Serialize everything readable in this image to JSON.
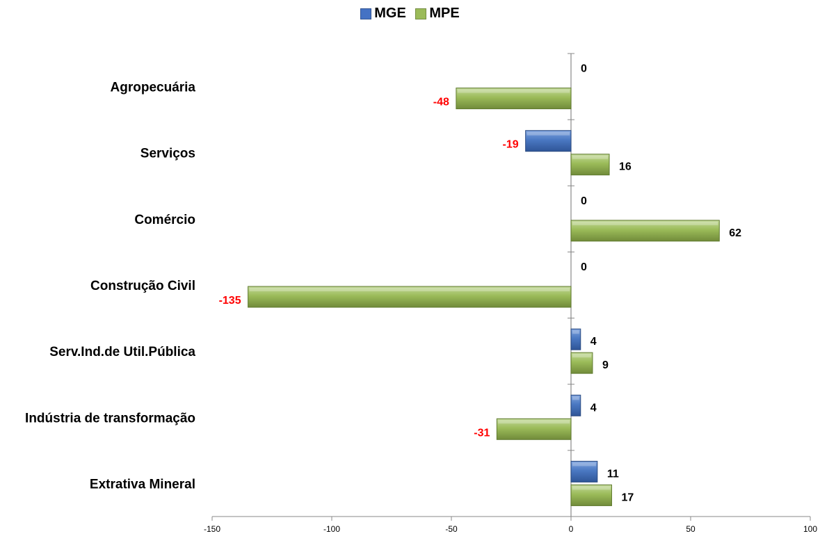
{
  "chart_data": {
    "type": "bar",
    "orientation": "horizontal",
    "categories": [
      "Agropecuária",
      "Serviços",
      "Comércio",
      "Construção Civil",
      "Serv.Ind.de Util.Pública",
      "Indústria de transformação",
      "Extrativa Mineral"
    ],
    "series": [
      {
        "name": "MGE",
        "color": "#4472c4",
        "values": [
          0,
          -19,
          0,
          0,
          4,
          4,
          11
        ]
      },
      {
        "name": "MPE",
        "color": "#9bbb59",
        "values": [
          -48,
          16,
          62,
          -135,
          9,
          -31,
          17
        ]
      }
    ],
    "xlim": [
      -150,
      100
    ],
    "x_ticks": [
      "-150",
      "-100",
      "-50",
      "0",
      "50",
      "100"
    ],
    "x_tick_values": [
      -150,
      -100,
      -50,
      0,
      50,
      100
    ],
    "legend_position": "top",
    "grid": false,
    "label_colors": {
      "negative": "#ff0000",
      "positive": "#000000"
    }
  }
}
